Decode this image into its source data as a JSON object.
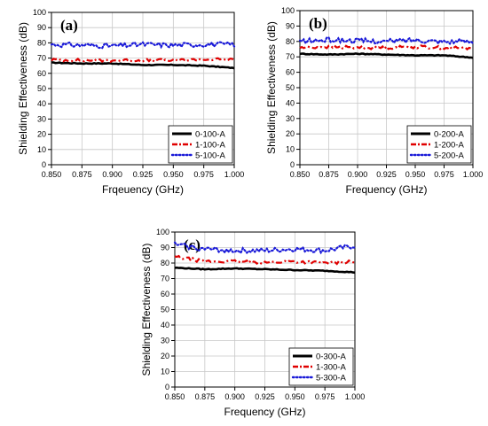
{
  "chart_data": [
    {
      "type": "line",
      "panel_label": "(a)",
      "xlabel": "Frqeuency (GHz)",
      "ylabel": "Shielding Effectiveness (dB)",
      "xlim": [
        0.85,
        1.0
      ],
      "ylim": [
        0,
        100
      ],
      "xticks": [
        "0.850",
        "0.875",
        "0.900",
        "0.925",
        "0.950",
        "0.975",
        "1.000"
      ],
      "yticks": [
        "0",
        "10",
        "20",
        "30",
        "40",
        "50",
        "60",
        "70",
        "80",
        "90",
        "100"
      ],
      "grid": true,
      "legend_position": "bottom-right",
      "x": [
        0.85,
        0.875,
        0.9,
        0.925,
        0.95,
        0.975,
        1.0
      ],
      "series": [
        {
          "name": "0-100-A",
          "color": "#000000",
          "style": "solid",
          "values": [
            67,
            66.5,
            66.5,
            65.5,
            65.5,
            65,
            63.5
          ]
        },
        {
          "name": "1-100-A",
          "color": "#e00000",
          "style": "dashdot",
          "values": [
            69,
            68.5,
            68.5,
            68.5,
            68.5,
            69,
            69
          ]
        },
        {
          "name": "5-100-A",
          "color": "#1a1ad8",
          "style": "dotted",
          "values": [
            79,
            78.5,
            78,
            79,
            78.5,
            79,
            79
          ]
        }
      ]
    },
    {
      "type": "line",
      "panel_label": "(b)",
      "xlabel": "Frequency (GHz)",
      "ylabel": "Shielding Effectiveness (dB)",
      "xlim": [
        0.85,
        1.0
      ],
      "ylim": [
        0,
        100
      ],
      "xticks": [
        "0.850",
        "0.875",
        "0.900",
        "0.925",
        "0.950",
        "0.975",
        "1.000"
      ],
      "yticks": [
        "0",
        "10",
        "20",
        "30",
        "40",
        "50",
        "60",
        "70",
        "80",
        "90",
        "100"
      ],
      "grid": true,
      "legend_position": "bottom-right",
      "x": [
        0.85,
        0.875,
        0.9,
        0.925,
        0.95,
        0.975,
        1.0
      ],
      "series": [
        {
          "name": "0-200-A",
          "color": "#000000",
          "style": "solid",
          "values": [
            72,
            71.5,
            72,
            71.5,
            71,
            71,
            69.5
          ]
        },
        {
          "name": "1-200-A",
          "color": "#e00000",
          "style": "dashdot",
          "values": [
            76,
            76.5,
            76,
            76,
            76.5,
            76,
            75.5
          ]
        },
        {
          "name": "5-200-A",
          "color": "#1a1ad8",
          "style": "dotted",
          "values": [
            80,
            81,
            80.5,
            80,
            81,
            80,
            80
          ]
        }
      ]
    },
    {
      "type": "line",
      "panel_label": "(c)",
      "xlabel": "Frequency (GHz)",
      "ylabel": "Shielding Effectiveness (dB)",
      "xlim": [
        0.85,
        1.0
      ],
      "ylim": [
        0,
        100
      ],
      "xticks": [
        "0.850",
        "0.875",
        "0.900",
        "0.925",
        "0.950",
        "0.975",
        "1.000"
      ],
      "yticks": [
        "0",
        "10",
        "20",
        "30",
        "40",
        "50",
        "60",
        "70",
        "80",
        "90",
        "100"
      ],
      "grid": true,
      "legend_position": "bottom-right",
      "x": [
        0.85,
        0.875,
        0.9,
        0.925,
        0.95,
        0.975,
        1.0
      ],
      "series": [
        {
          "name": "0-300-A",
          "color": "#000000",
          "style": "solid",
          "values": [
            77,
            76,
            76.5,
            76,
            75.5,
            75,
            74
          ]
        },
        {
          "name": "1-300-A",
          "color": "#e00000",
          "style": "dashdot",
          "values": [
            84,
            81,
            81,
            80.5,
            81,
            80,
            81
          ]
        },
        {
          "name": "5-300-A",
          "color": "#1a1ad8",
          "style": "dotted",
          "values": [
            92,
            89,
            88,
            88,
            89,
            88,
            91
          ]
        }
      ]
    }
  ]
}
